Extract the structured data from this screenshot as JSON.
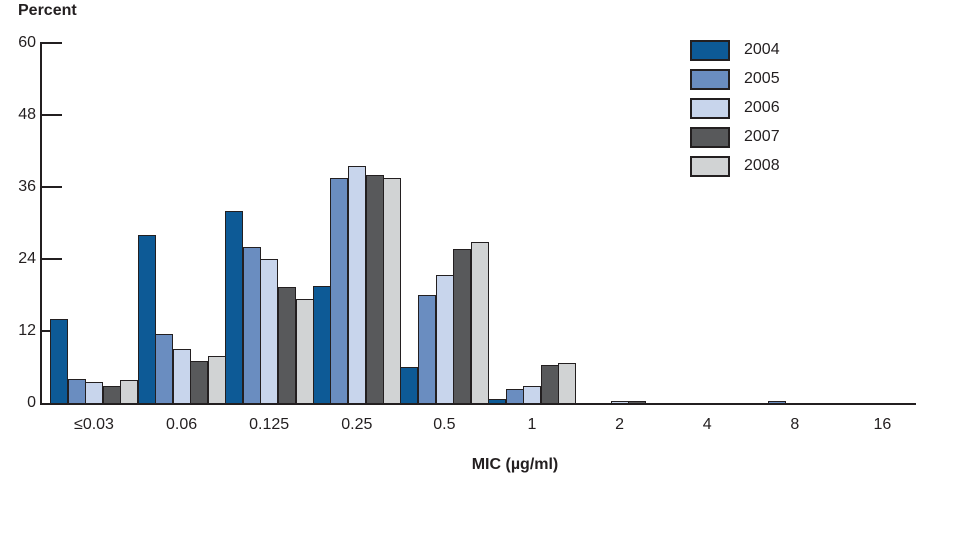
{
  "chart_data": {
    "type": "bar",
    "title": "",
    "ylabel": "Percent",
    "xlabel": "MIC (µg/ml)",
    "ylim": [
      0,
      60
    ],
    "yticks": [
      0,
      12,
      24,
      36,
      48,
      60
    ],
    "grid": false,
    "legend_position": "top-right",
    "categories": [
      "≤0.03",
      "0.06",
      "0.125",
      "0.25",
      "0.5",
      "1",
      "2",
      "4",
      "8",
      "16"
    ],
    "series": [
      {
        "name": "2004",
        "color": "#0d5a96",
        "values": [
          14,
          28,
          32,
          19.5,
          6,
          0.7,
          0,
          0,
          0,
          0
        ]
      },
      {
        "name": "2005",
        "color": "#6a8dc0",
        "values": [
          4,
          11.5,
          26,
          37.5,
          18,
          2.4,
          0,
          0,
          0.3,
          0
        ]
      },
      {
        "name": "2006",
        "color": "#c8d5ec",
        "values": [
          3.5,
          9,
          24,
          39.5,
          21.3,
          2.9,
          0.3,
          0,
          0,
          0
        ]
      },
      {
        "name": "2007",
        "color": "#58595b",
        "values": [
          2.8,
          7,
          19.3,
          38,
          25.7,
          6.4,
          0.4,
          0,
          0,
          0
        ]
      },
      {
        "name": "2008",
        "color": "#d1d3d4",
        "values": [
          3.8,
          7.9,
          17.3,
          37.5,
          26.8,
          6.6,
          0,
          0,
          0,
          0
        ]
      }
    ],
    "bar_border_color": "#231f20",
    "axis_color": "#231f20"
  }
}
